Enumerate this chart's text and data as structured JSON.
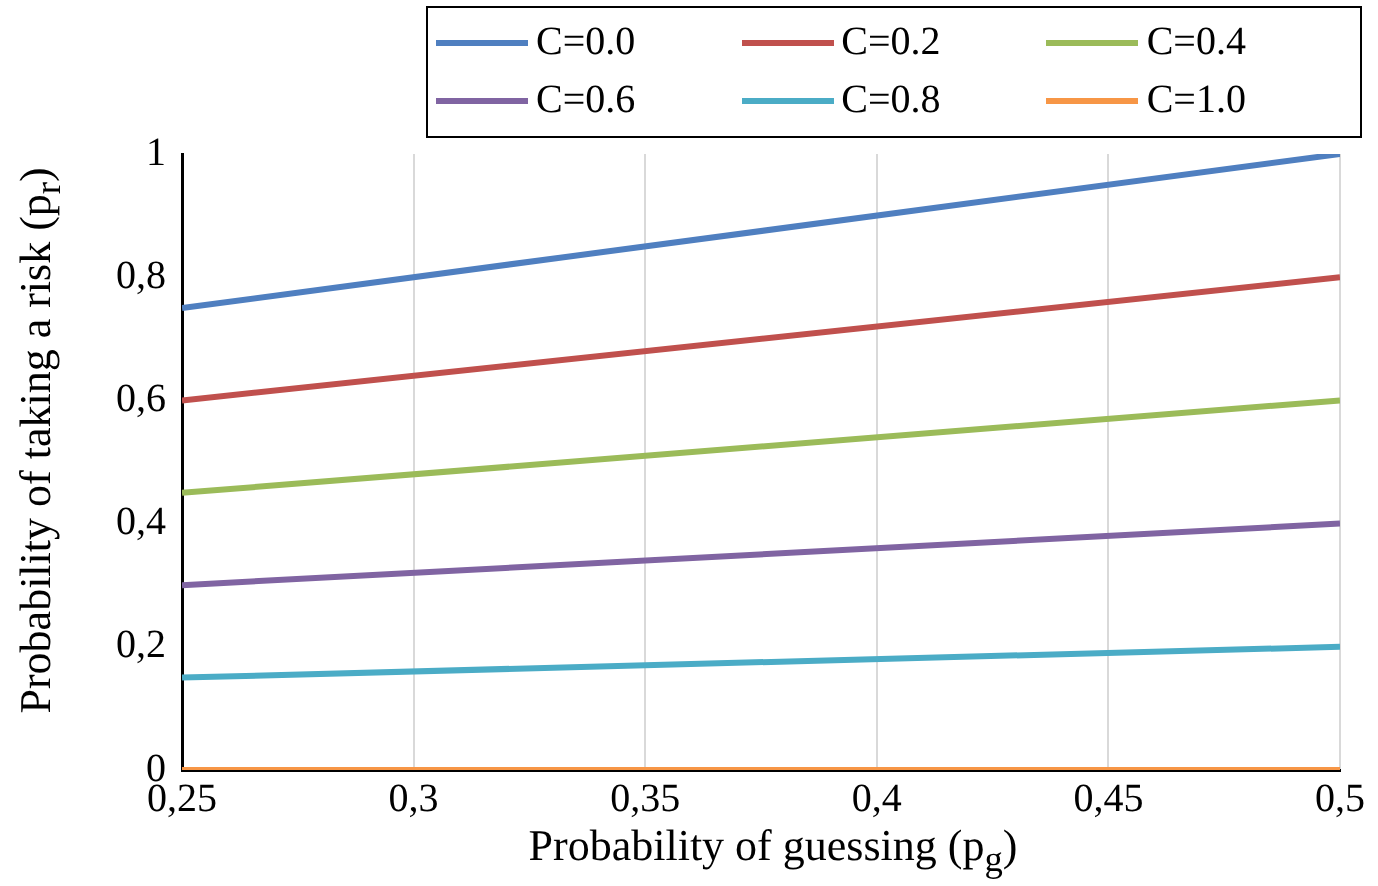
{
  "chart_data": {
    "type": "line",
    "xlabel": "Probability of guessing (p$_{g}$)",
    "ylabel": "Probability of taking a risk (p$_{r}$)",
    "x": [
      0.25,
      0.5
    ],
    "series": [
      {
        "name": "C=0.0",
        "color": "#4f7fc0",
        "values": [
          0.75,
          1
        ]
      },
      {
        "name": "C=0.2",
        "color": "#c0504d",
        "values": [
          0.6,
          0.8
        ]
      },
      {
        "name": "C=0.4",
        "color": "#9bbb59",
        "values": [
          0.45,
          0.6
        ]
      },
      {
        "name": "C=0.6",
        "color": "#8064a2",
        "values": [
          0.3,
          0.4
        ]
      },
      {
        "name": "C=0.8",
        "color": "#4bacc6",
        "values": [
          0.15,
          0.2
        ]
      },
      {
        "name": "C=1.0",
        "color": "#f79646",
        "values": [
          0,
          0
        ]
      }
    ],
    "xlim": [
      0.25,
      0.5
    ],
    "xticks": [
      {
        "value": 0.25,
        "label": "0,25"
      },
      {
        "value": 0.3,
        "label": "0,3"
      },
      {
        "value": 0.35,
        "label": "0,35"
      },
      {
        "value": 0.4,
        "label": "0,4"
      },
      {
        "value": 0.45,
        "label": "0,45"
      },
      {
        "value": 0.5,
        "label": "0,5"
      }
    ],
    "ylim": [
      0,
      1
    ],
    "yticks": [
      0,
      {
        "value": 0.2,
        "label": "0,2"
      },
      {
        "value": 0.4,
        "label": "0,4"
      },
      {
        "value": 0.6,
        "label": "0,6"
      },
      {
        "value": 0.8,
        "label": "0,8"
      },
      1
    ],
    "grid": "x",
    "legend": "top",
    "marker": "none",
    "line_style": "solid"
  }
}
